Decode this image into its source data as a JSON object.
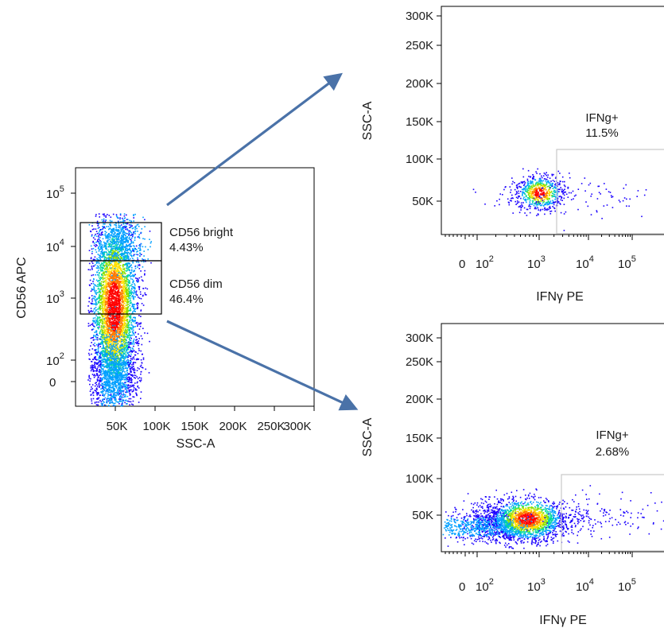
{
  "chart_data": [
    {
      "type": "scatter",
      "panel": "left",
      "xlabel": "SSC-A",
      "ylabel": "CD56 APC",
      "x_scale": "linear",
      "y_scale": "biexponential",
      "xlim": [
        0,
        300000
      ],
      "x_ticks": [
        "50K",
        "100K",
        "150K",
        "200K",
        "250K",
        "300K"
      ],
      "y_ticks": [
        {
          "base": "0",
          "exp": ""
        },
        {
          "base": "10",
          "exp": "2"
        },
        {
          "base": "10",
          "exp": "3"
        },
        {
          "base": "10",
          "exp": "4"
        },
        {
          "base": "10",
          "exp": "5"
        }
      ],
      "gates": [
        {
          "name": "CD56 bright",
          "percent": "4.43%",
          "ssc_range": [
            0,
            100000
          ],
          "cd56_range": [
            5000,
            25000
          ]
        },
        {
          "name": "CD56 dim",
          "percent": "46.4%",
          "ssc_range": [
            0,
            100000
          ],
          "cd56_range": [
            600,
            5000
          ]
        }
      ],
      "population": {
        "ssc_center": 45000,
        "cd56_center": 1000,
        "cd56_extent": [
          0,
          30000
        ]
      }
    },
    {
      "type": "scatter",
      "panel": "top-right",
      "source_gate": "CD56 bright",
      "xlabel": "IFNγ PE",
      "ylabel": "SSC-A",
      "x_scale": "biexponential",
      "ylim": [
        0,
        300000
      ],
      "y_ticks": [
        "50K",
        "100K",
        "150K",
        "200K",
        "250K",
        "300K"
      ],
      "x_ticks": [
        {
          "base": "0",
          "exp": ""
        },
        {
          "base": "10",
          "exp": "2"
        },
        {
          "base": "10",
          "exp": "3"
        },
        {
          "base": "10",
          "exp": "4"
        },
        {
          "base": "10",
          "exp": "5"
        }
      ],
      "gate": {
        "name": "IFNg+",
        "percent": "11.5%",
        "ifn_min": 1500,
        "ssc_range": [
          0,
          100000
        ]
      },
      "population": {
        "ifn_center": 700,
        "ssc_center": 58000
      }
    },
    {
      "type": "scatter",
      "panel": "bottom-right",
      "source_gate": "CD56 dim",
      "xlabel": "IFNγ PE",
      "ylabel": "SSC-A",
      "x_scale": "biexponential",
      "ylim": [
        0,
        300000
      ],
      "y_ticks": [
        "50K",
        "100K",
        "150K",
        "200K",
        "250K",
        "300K"
      ],
      "x_ticks": [
        {
          "base": "0",
          "exp": ""
        },
        {
          "base": "10",
          "exp": "2"
        },
        {
          "base": "10",
          "exp": "3"
        },
        {
          "base": "10",
          "exp": "4"
        },
        {
          "base": "10",
          "exp": "5"
        }
      ],
      "gate": {
        "name": "IFNg+",
        "percent": "2.68%",
        "ifn_min": 2000,
        "ssc_range": [
          0,
          100000
        ]
      },
      "population": {
        "ifn_center": 600,
        "ssc_center": 48000
      }
    }
  ],
  "colors": {
    "arrow": "#4a72a8",
    "gate_left": "#000000",
    "gate_right": "#c8c8c8",
    "density_scale": [
      "#1a00ff",
      "#00a0ff",
      "#00d8a0",
      "#8ee000",
      "#ffe000",
      "#ff7a00",
      "#ff0000"
    ]
  }
}
